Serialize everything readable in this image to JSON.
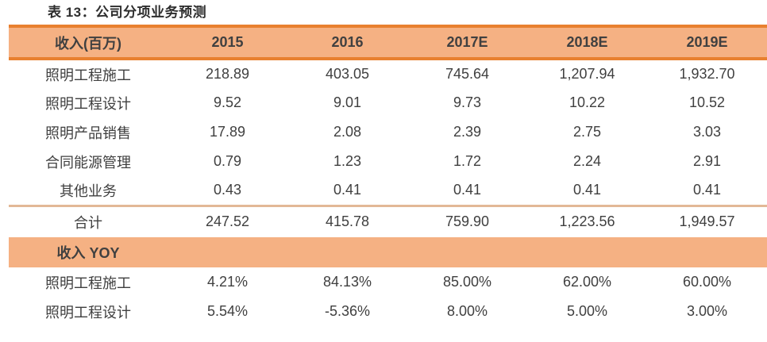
{
  "caption": "表 13：公司分项业务预测",
  "chart_data": {
    "type": "table",
    "title": "表 13：公司分项业务预测",
    "columns": [
      "收入(百万)",
      "2015",
      "2016",
      "2017E",
      "2018E",
      "2019E"
    ],
    "revenue_rows": [
      {
        "label": "照明工程施工",
        "values": [
          "218.89",
          "403.05",
          "745.64",
          "1,207.94",
          "1,932.70"
        ]
      },
      {
        "label": "照明工程设计",
        "values": [
          "9.52",
          "9.01",
          "9.73",
          "10.22",
          "10.52"
        ]
      },
      {
        "label": "照明产品销售",
        "values": [
          "17.89",
          "2.08",
          "2.39",
          "2.75",
          "3.03"
        ]
      },
      {
        "label": "合同能源管理",
        "values": [
          "0.79",
          "1.23",
          "1.72",
          "2.24",
          "2.91"
        ]
      },
      {
        "label": "其他业务",
        "values": [
          "0.43",
          "0.41",
          "0.41",
          "0.41",
          "0.41"
        ]
      }
    ],
    "total_row": {
      "label": "合计",
      "values": [
        "247.52",
        "415.78",
        "759.90",
        "1,223.56",
        "1,949.57"
      ]
    },
    "yoy_section_label": "收入 YOY",
    "yoy_rows": [
      {
        "label": "照明工程施工",
        "values": [
          "4.21%",
          "84.13%",
          "85.00%",
          "62.00%",
          "60.00%"
        ]
      },
      {
        "label": "照明工程设计",
        "values": [
          "5.54%",
          "-5.36%",
          "8.00%",
          "5.00%",
          "3.00%"
        ]
      }
    ]
  },
  "colors": {
    "accent_orange": "#E8802F",
    "band_fill": "#F5B183",
    "separator_line": "#E2B896",
    "text": "#3F3F3F"
  }
}
